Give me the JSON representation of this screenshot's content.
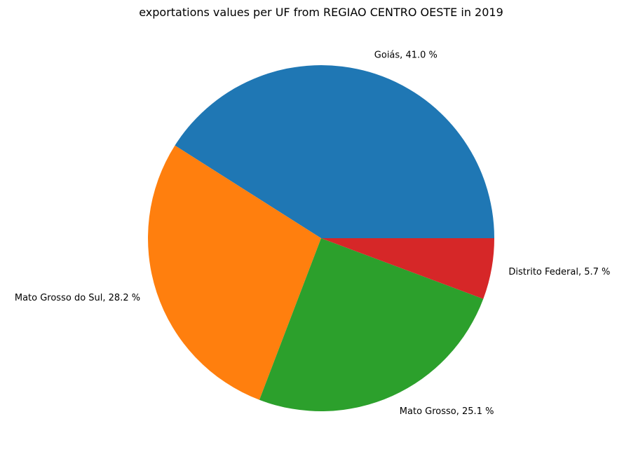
{
  "chart_data": {
    "type": "pie",
    "title": "exportations values per UF from REGIAO CENTRO OESTE in 2019",
    "slices": [
      {
        "label": "Goiás",
        "value": 41.0,
        "text": "Goiás, 41.0 %",
        "color": "#1f77b4"
      },
      {
        "label": "Mato Grosso do Sul",
        "value": 28.2,
        "text": "Mato Grosso do Sul, 28.2 %",
        "color": "#ff7f0e"
      },
      {
        "label": "Mato Grosso",
        "value": 25.1,
        "text": "Mato Grosso, 25.1 %",
        "color": "#2ca02c"
      },
      {
        "label": "Distrito Federal",
        "value": 5.7,
        "text": "Distrito Federal, 5.7 %",
        "color": "#d62728"
      }
    ],
    "start_angle_deg": 0,
    "direction": "counterclockwise",
    "legend": "none"
  }
}
